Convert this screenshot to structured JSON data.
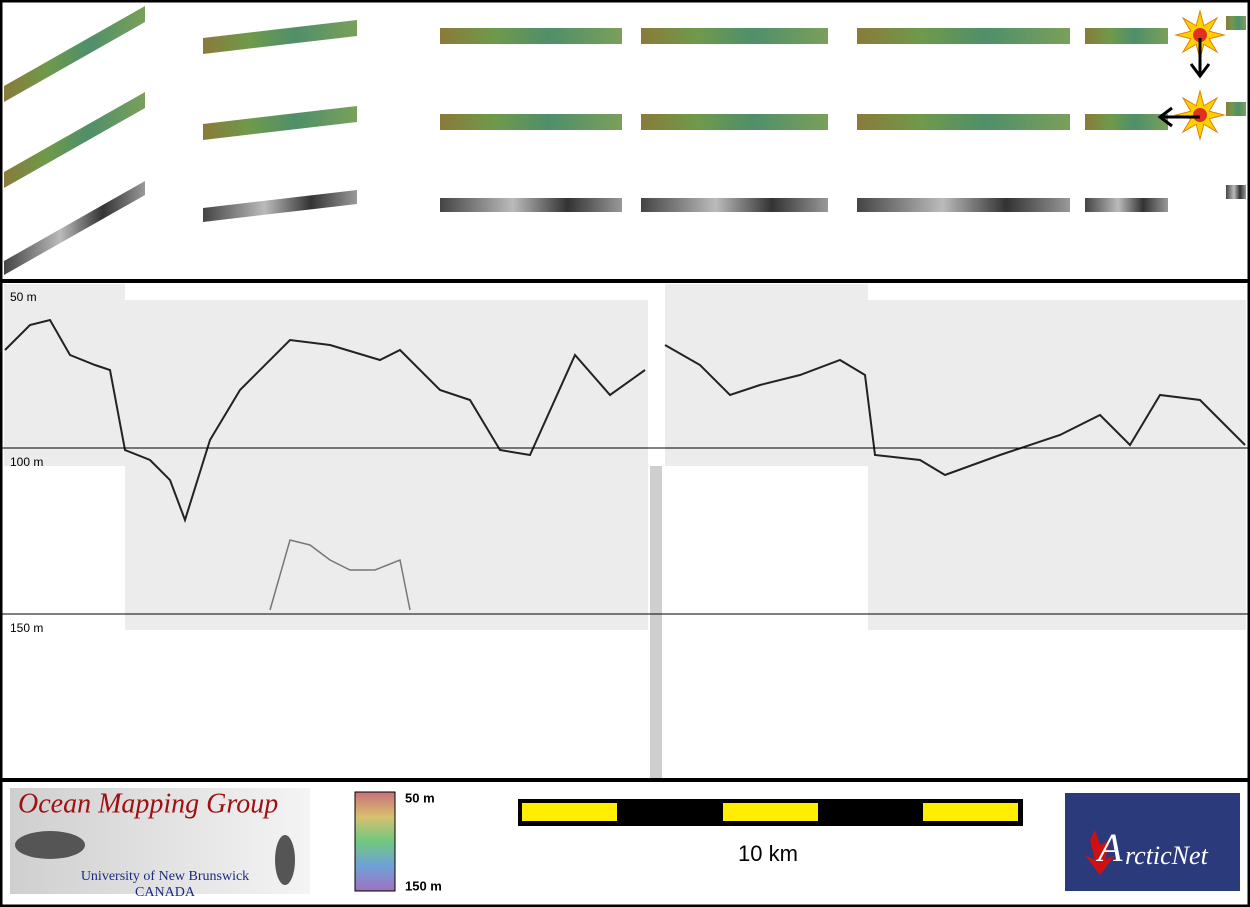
{
  "depth_axis": {
    "labels": [
      "50 m",
      "100 m",
      "150 m"
    ]
  },
  "logo": {
    "title": "Ocean Mapping Group",
    "university": "University of New Brunswick",
    "country": "CANADA"
  },
  "color_bar": {
    "top": "50 m",
    "bottom": "150 m"
  },
  "scale_bar": {
    "label": "10 km"
  },
  "partner_logo": {
    "initial": "A",
    "rest": "rcticNet"
  }
}
